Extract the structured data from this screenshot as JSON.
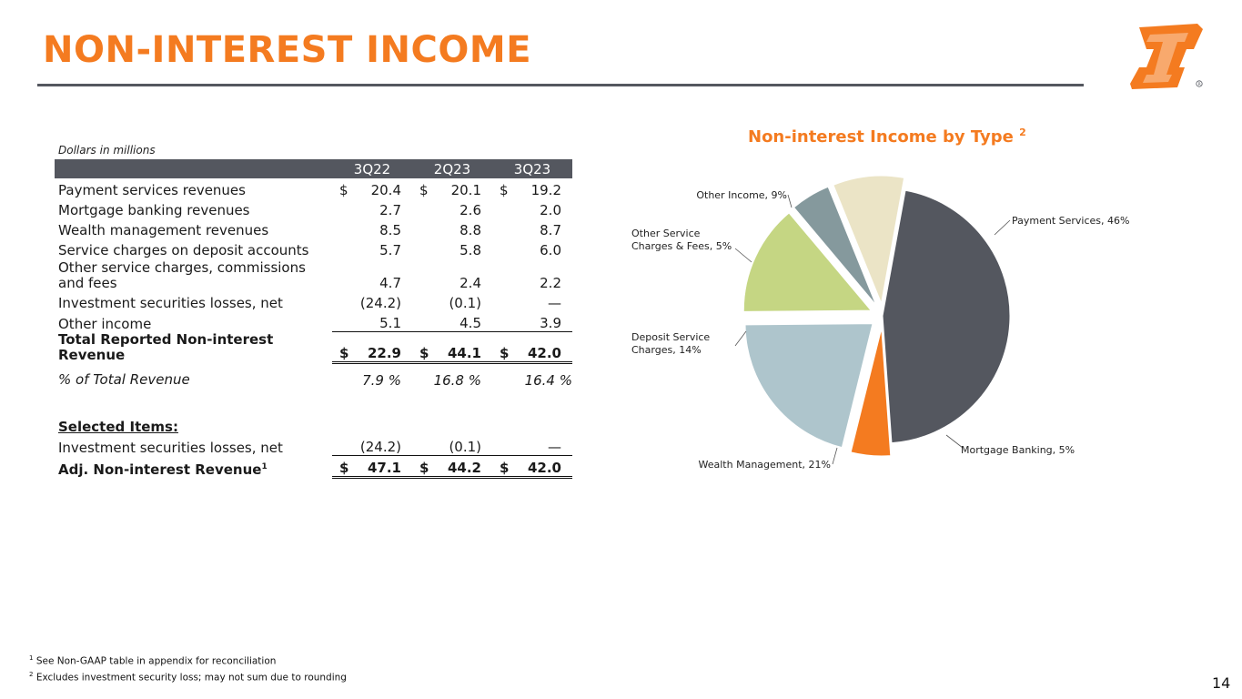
{
  "page": {
    "title": "NON-INTEREST INCOME",
    "page_number": "14",
    "brand_color": "#f47b20"
  },
  "table": {
    "units_note": "Dollars in millions",
    "headers": [
      "3Q22",
      "2Q23",
      "3Q23"
    ],
    "rows": {
      "payment": {
        "label": "Payment services revenues",
        "v": [
          "20.4",
          "20.1",
          "19.2"
        ],
        "cur": "$"
      },
      "mortgage": {
        "label": "Mortgage banking revenues",
        "v": [
          "2.7",
          "2.6",
          "2.0"
        ]
      },
      "wealth": {
        "label": "Wealth management revenues",
        "v": [
          "8.5",
          "8.8",
          "8.7"
        ]
      },
      "service": {
        "label": "Service charges on deposit accounts",
        "v": [
          "5.7",
          "5.8",
          "6.0"
        ]
      },
      "othersvc": {
        "label": "Other service charges, commissions and fees",
        "v": [
          "4.7",
          "2.4",
          "2.2"
        ]
      },
      "invest": {
        "label": "Investment securities losses, net",
        "v": [
          "(24.2)",
          "(0.1)",
          "—"
        ]
      },
      "other": {
        "label": "Other income",
        "v": [
          "5.1",
          "4.5",
          "3.9"
        ]
      },
      "total": {
        "label": "Total Reported Non-interest Revenue",
        "v": [
          "22.9",
          "44.1",
          "42.0"
        ],
        "cur": "$"
      },
      "pct": {
        "label": "% of Total Revenue",
        "v": [
          "7.9 %",
          "16.8 %",
          "16.4 %"
        ]
      },
      "selected": {
        "label": "Selected Items:"
      },
      "invest2": {
        "label": "Investment securities losses, net",
        "v": [
          "(24.2)",
          "(0.1)",
          "—"
        ]
      },
      "adj": {
        "label": "Adj. Non-interest Revenue",
        "sup": "1",
        "v": [
          "47.1",
          "44.2",
          "42.0"
        ],
        "cur": "$"
      }
    }
  },
  "chart_data": {
    "type": "pie",
    "title": "Non-interest Income by Type",
    "title_footnote": "2",
    "slices": [
      {
        "label": "Payment Services, 46%",
        "value": 46,
        "color": "#54575f",
        "exploded": false
      },
      {
        "label": "Mortgage Banking, 5%",
        "value": 5,
        "color": "#f47b20",
        "exploded": true
      },
      {
        "label": "Wealth Management, 21%",
        "value": 21,
        "color": "#aec5cc",
        "exploded": true
      },
      {
        "label_lines": [
          "Deposit Service",
          "Charges, 14%"
        ],
        "value": 14,
        "color": "#c5d683",
        "exploded": true
      },
      {
        "label_lines": [
          "Other Service",
          "Charges & Fees, 5%"
        ],
        "value": 5,
        "color": "#85999d",
        "exploded": true
      },
      {
        "label": "Other Income, 9%",
        "value": 9,
        "color": "#ebe4c6",
        "exploded": true
      }
    ]
  },
  "footnotes": [
    {
      "sup": "1",
      "text": "See Non-GAAP table in appendix for reconciliation"
    },
    {
      "sup": "2",
      "text": "Excludes investment security loss; may not sum due to rounding"
    }
  ]
}
